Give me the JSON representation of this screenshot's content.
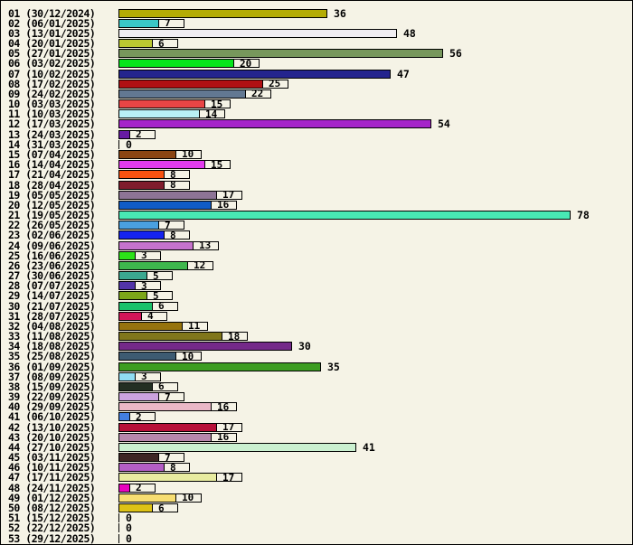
{
  "chart_data": {
    "type": "bar",
    "orientation": "horizontal",
    "title": "",
    "xlabel": "",
    "ylabel": "",
    "x_range": [
      0,
      88
    ],
    "grid": false,
    "legend": false,
    "background_color": "#f5f3e6",
    "bar_border_color": "#000000",
    "text_color": "#000000",
    "value_label_box_rule": "values 1-25 shown in bordered box attached to bar; values >=30 shown plain after bar; value 0 shown as tick plus plain 0",
    "rows": [
      {
        "week": "01",
        "date": "30/12/2024",
        "value": 36,
        "color": "#b4ac04"
      },
      {
        "week": "02",
        "date": "06/01/2025",
        "value": 7,
        "color": "#3ac8c6"
      },
      {
        "week": "03",
        "date": "13/01/2025",
        "value": 48,
        "color": "#f0edf2"
      },
      {
        "week": "04",
        "date": "20/01/2025",
        "value": 6,
        "color": "#bcc832"
      },
      {
        "week": "05",
        "date": "27/01/2025",
        "value": 56,
        "color": "#77975c"
      },
      {
        "week": "06",
        "date": "03/02/2025",
        "value": 20,
        "color": "#06e61c"
      },
      {
        "week": "07",
        "date": "10/02/2025",
        "value": 47,
        "color": "#24248e"
      },
      {
        "week": "08",
        "date": "17/02/2025",
        "value": 25,
        "color": "#b01014"
      },
      {
        "week": "09",
        "date": "24/02/2025",
        "value": 22,
        "color": "#627892"
      },
      {
        "week": "10",
        "date": "03/03/2025",
        "value": 15,
        "color": "#e94545"
      },
      {
        "week": "11",
        "date": "10/03/2025",
        "value": 14,
        "color": "#b8f0f6"
      },
      {
        "week": "12",
        "date": "17/03/2025",
        "value": 54,
        "color": "#a525c9"
      },
      {
        "week": "13",
        "date": "24/03/2025",
        "value": 2,
        "color": "#671aa3"
      },
      {
        "week": "14",
        "date": "31/03/2025",
        "value": 0,
        "color": "#000000"
      },
      {
        "week": "15",
        "date": "07/04/2025",
        "value": 10,
        "color": "#8b4513"
      },
      {
        "week": "16",
        "date": "14/04/2025",
        "value": 15,
        "color": "#e23bee"
      },
      {
        "week": "17",
        "date": "21/04/2025",
        "value": 8,
        "color": "#f85210"
      },
      {
        "week": "18",
        "date": "28/04/2025",
        "value": 8,
        "color": "#801c2c"
      },
      {
        "week": "19",
        "date": "05/05/2025",
        "value": 17,
        "color": "#8d7496"
      },
      {
        "week": "20",
        "date": "12/05/2025",
        "value": 16,
        "color": "#115cc6"
      },
      {
        "week": "21",
        "date": "19/05/2025",
        "value": 78,
        "color": "#48e8b4"
      },
      {
        "week": "22",
        "date": "26/05/2025",
        "value": 7,
        "color": "#4aa0e0"
      },
      {
        "week": "23",
        "date": "02/06/2025",
        "value": 8,
        "color": "#1523ef"
      },
      {
        "week": "24",
        "date": "09/06/2025",
        "value": 13,
        "color": "#c673cc"
      },
      {
        "week": "25",
        "date": "16/06/2025",
        "value": 3,
        "color": "#2ce218"
      },
      {
        "week": "26",
        "date": "23/06/2025",
        "value": 12,
        "color": "#3eb74d"
      },
      {
        "week": "27",
        "date": "30/06/2025",
        "value": 5,
        "color": "#3ba890"
      },
      {
        "week": "28",
        "date": "07/07/2025",
        "value": 3,
        "color": "#5234a8"
      },
      {
        "week": "29",
        "date": "14/07/2025",
        "value": 5,
        "color": "#7ca619"
      },
      {
        "week": "30",
        "date": "21/07/2025",
        "value": 6,
        "color": "#1bc26b"
      },
      {
        "week": "31",
        "date": "28/07/2025",
        "value": 4,
        "color": "#d31458"
      },
      {
        "week": "32",
        "date": "04/08/2025",
        "value": 11,
        "color": "#96730d"
      },
      {
        "week": "33",
        "date": "11/08/2025",
        "value": 18,
        "color": "#80761b"
      },
      {
        "week": "34",
        "date": "18/08/2025",
        "value": 30,
        "color": "#742989"
      },
      {
        "week": "35",
        "date": "25/08/2025",
        "value": 10,
        "color": "#3d5b72"
      },
      {
        "week": "36",
        "date": "01/09/2025",
        "value": 35,
        "color": "#3c9d21"
      },
      {
        "week": "37",
        "date": "08/09/2025",
        "value": 3,
        "color": "#90ddf2"
      },
      {
        "week": "38",
        "date": "15/09/2025",
        "value": 6,
        "color": "#232f23"
      },
      {
        "week": "39",
        "date": "22/09/2025",
        "value": 7,
        "color": "#cba3df"
      },
      {
        "week": "40",
        "date": "29/09/2025",
        "value": 16,
        "color": "#eab8c7"
      },
      {
        "week": "41",
        "date": "06/10/2025",
        "value": 2,
        "color": "#437ee0"
      },
      {
        "week": "42",
        "date": "13/10/2025",
        "value": 17,
        "color": "#b71039"
      },
      {
        "week": "43",
        "date": "20/10/2025",
        "value": 16,
        "color": "#b888ad"
      },
      {
        "week": "44",
        "date": "27/10/2025",
        "value": 41,
        "color": "#caf0d0"
      },
      {
        "week": "45",
        "date": "03/11/2025",
        "value": 7,
        "color": "#3d2524"
      },
      {
        "week": "46",
        "date": "10/11/2025",
        "value": 8,
        "color": "#b35ec5"
      },
      {
        "week": "47",
        "date": "17/11/2025",
        "value": 17,
        "color": "#e8eca0"
      },
      {
        "week": "48",
        "date": "24/11/2025",
        "value": 2,
        "color": "#e704be"
      },
      {
        "week": "49",
        "date": "01/12/2025",
        "value": 10,
        "color": "#f7de72"
      },
      {
        "week": "50",
        "date": "08/12/2025",
        "value": 6,
        "color": "#ddc216"
      },
      {
        "week": "51",
        "date": "15/12/2025",
        "value": 0,
        "color": "#000000"
      },
      {
        "week": "52",
        "date": "22/12/2025",
        "value": 0,
        "color": "#000000"
      },
      {
        "week": "53",
        "date": "29/12/2025",
        "value": 0,
        "color": "#000000"
      }
    ]
  }
}
